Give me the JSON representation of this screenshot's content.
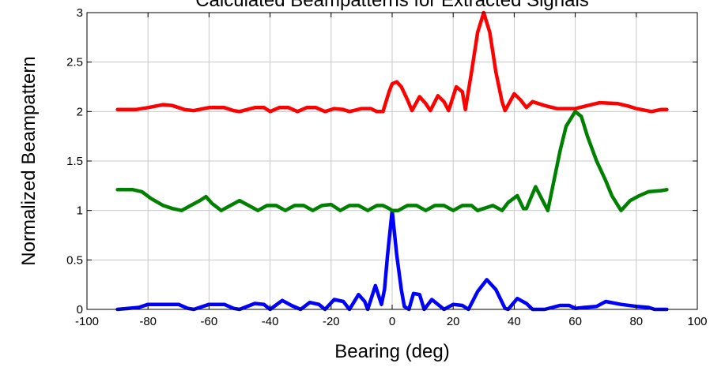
{
  "chart_data": {
    "type": "line",
    "title": "Calculated Beampatterns for Extracted Signals",
    "xlabel": "Bearing (deg)",
    "ylabel": "Normalized Beampattern",
    "xlim": [
      -100,
      100
    ],
    "ylim": [
      0,
      3
    ],
    "xticks": [
      -100,
      -80,
      -60,
      -40,
      -20,
      0,
      20,
      40,
      60,
      80,
      100
    ],
    "yticks": [
      0,
      0.5,
      1,
      1.5,
      2,
      2.5,
      3
    ],
    "grid": true,
    "legend": "none",
    "series": [
      {
        "color": "#0000ff",
        "points": [
          [
            -90,
            0
          ],
          [
            -83,
            0.02
          ],
          [
            -80,
            0.05
          ],
          [
            -70,
            0.05
          ],
          [
            -67,
            0.01
          ],
          [
            -65,
            0
          ],
          [
            -60,
            0.05
          ],
          [
            -55,
            0.05
          ],
          [
            -52,
            0.01
          ],
          [
            -50,
            0
          ],
          [
            -45,
            0.06
          ],
          [
            -42,
            0.05
          ],
          [
            -40,
            0
          ],
          [
            -36,
            0.09
          ],
          [
            -33,
            0.04
          ],
          [
            -30,
            0
          ],
          [
            -27,
            0.07
          ],
          [
            -24,
            0.05
          ],
          [
            -22,
            0
          ],
          [
            -19,
            0.1
          ],
          [
            -16,
            0.08
          ],
          [
            -14,
            0
          ],
          [
            -11,
            0.15
          ],
          [
            -9,
            0.08
          ],
          [
            -8,
            0
          ],
          [
            -5.5,
            0.24
          ],
          [
            -3.5,
            0.05
          ],
          [
            -2.5,
            0.2
          ],
          [
            -1.5,
            0.55
          ],
          [
            0,
            1
          ],
          [
            1.5,
            0.55
          ],
          [
            3,
            0.2
          ],
          [
            4,
            0.03
          ],
          [
            5.5,
            0
          ],
          [
            7,
            0.16
          ],
          [
            9,
            0.15
          ],
          [
            10.5,
            0
          ],
          [
            13,
            0.1
          ],
          [
            15,
            0.05
          ],
          [
            17,
            0
          ],
          [
            20,
            0.05
          ],
          [
            23,
            0.04
          ],
          [
            25,
            0
          ],
          [
            28,
            0.18
          ],
          [
            31,
            0.3
          ],
          [
            34,
            0.2
          ],
          [
            37,
            0.01
          ],
          [
            38,
            0
          ],
          [
            41,
            0.11
          ],
          [
            44,
            0.06
          ],
          [
            46,
            0
          ],
          [
            50,
            0
          ],
          [
            55,
            0.04
          ],
          [
            58,
            0.04
          ],
          [
            60,
            0.01
          ],
          [
            63,
            0.02
          ],
          [
            67,
            0.03
          ],
          [
            70,
            0.08
          ],
          [
            75,
            0.05
          ],
          [
            80,
            0.03
          ],
          [
            84,
            0.02
          ],
          [
            86,
            0
          ],
          [
            90,
            0
          ]
        ]
      },
      {
        "color": "#008000",
        "points": [
          [
            -90,
            1.21
          ],
          [
            -85,
            1.21
          ],
          [
            -82,
            1.19
          ],
          [
            -79,
            1.12
          ],
          [
            -75,
            1.05
          ],
          [
            -72,
            1.02
          ],
          [
            -69,
            1
          ],
          [
            -66,
            1.05
          ],
          [
            -63,
            1.1
          ],
          [
            -61,
            1.14
          ],
          [
            -59,
            1.07
          ],
          [
            -56,
            1
          ],
          [
            -53,
            1.05
          ],
          [
            -50,
            1.1
          ],
          [
            -47,
            1.05
          ],
          [
            -44,
            1
          ],
          [
            -41,
            1.05
          ],
          [
            -38,
            1.05
          ],
          [
            -35,
            1
          ],
          [
            -32,
            1.05
          ],
          [
            -29,
            1.05
          ],
          [
            -26,
            1
          ],
          [
            -23,
            1.05
          ],
          [
            -20,
            1.06
          ],
          [
            -17,
            1
          ],
          [
            -14,
            1.05
          ],
          [
            -11,
            1.05
          ],
          [
            -8,
            1
          ],
          [
            -5,
            1.05
          ],
          [
            -3,
            1.05
          ],
          [
            -1,
            1.02
          ],
          [
            0,
            1
          ],
          [
            2,
            1
          ],
          [
            5,
            1.05
          ],
          [
            8,
            1.05
          ],
          [
            11,
            1
          ],
          [
            14,
            1.05
          ],
          [
            17,
            1.05
          ],
          [
            20,
            1
          ],
          [
            23,
            1.05
          ],
          [
            26,
            1.05
          ],
          [
            28,
            1
          ],
          [
            30,
            1.02
          ],
          [
            33,
            1.05
          ],
          [
            36,
            1
          ],
          [
            38,
            1.08
          ],
          [
            41,
            1.15
          ],
          [
            43,
            1.02
          ],
          [
            44,
            1.02
          ],
          [
            47,
            1.24
          ],
          [
            49,
            1.12
          ],
          [
            51,
            1
          ],
          [
            53,
            1.3
          ],
          [
            55,
            1.6
          ],
          [
            57,
            1.85
          ],
          [
            60,
            2
          ],
          [
            62,
            1.95
          ],
          [
            64,
            1.75
          ],
          [
            67,
            1.5
          ],
          [
            70,
            1.3
          ],
          [
            72,
            1.15
          ],
          [
            75,
            1
          ],
          [
            78,
            1.1
          ],
          [
            81,
            1.15
          ],
          [
            84,
            1.19
          ],
          [
            88,
            1.2
          ],
          [
            90,
            1.21
          ]
        ]
      },
      {
        "color": "#ff0000",
        "points": [
          [
            -90,
            2.02
          ],
          [
            -84,
            2.02
          ],
          [
            -80,
            2.04
          ],
          [
            -75,
            2.07
          ],
          [
            -72,
            2.06
          ],
          [
            -68,
            2.02
          ],
          [
            -65,
            2.01
          ],
          [
            -60,
            2.04
          ],
          [
            -55,
            2.04
          ],
          [
            -52,
            2.01
          ],
          [
            -50,
            2
          ],
          [
            -45,
            2.04
          ],
          [
            -42,
            2.04
          ],
          [
            -40,
            2
          ],
          [
            -37,
            2.04
          ],
          [
            -34,
            2.04
          ],
          [
            -31,
            2
          ],
          [
            -28,
            2.04
          ],
          [
            -25,
            2.04
          ],
          [
            -22,
            2
          ],
          [
            -19,
            2.03
          ],
          [
            -16,
            2.02
          ],
          [
            -14,
            2
          ],
          [
            -10,
            2.03
          ],
          [
            -7,
            2.03
          ],
          [
            -5,
            2
          ],
          [
            -3,
            2
          ],
          [
            -1,
            2.2
          ],
          [
            0,
            2.28
          ],
          [
            1.5,
            2.3
          ],
          [
            3,
            2.25
          ],
          [
            5,
            2.12
          ],
          [
            6.5,
            2.01
          ],
          [
            9,
            2.15
          ],
          [
            11,
            2.08
          ],
          [
            12.5,
            2.01
          ],
          [
            15,
            2.16
          ],
          [
            17,
            2.1
          ],
          [
            18.5,
            2.01
          ],
          [
            21,
            2.25
          ],
          [
            23,
            2.2
          ],
          [
            24,
            2.02
          ],
          [
            26,
            2.4
          ],
          [
            28,
            2.8
          ],
          [
            30,
            3
          ],
          [
            32,
            2.8
          ],
          [
            34,
            2.4
          ],
          [
            36,
            2.1
          ],
          [
            37,
            2.01
          ],
          [
            40,
            2.18
          ],
          [
            42,
            2.12
          ],
          [
            44,
            2.04
          ],
          [
            46,
            2.1
          ],
          [
            50,
            2.06
          ],
          [
            54,
            2.03
          ],
          [
            60,
            2.03
          ],
          [
            64,
            2.06
          ],
          [
            68,
            2.09
          ],
          [
            74,
            2.08
          ],
          [
            78,
            2.05
          ],
          [
            80,
            2.03
          ],
          [
            85,
            2
          ],
          [
            88,
            2.02
          ],
          [
            90,
            2.02
          ]
        ]
      }
    ]
  }
}
